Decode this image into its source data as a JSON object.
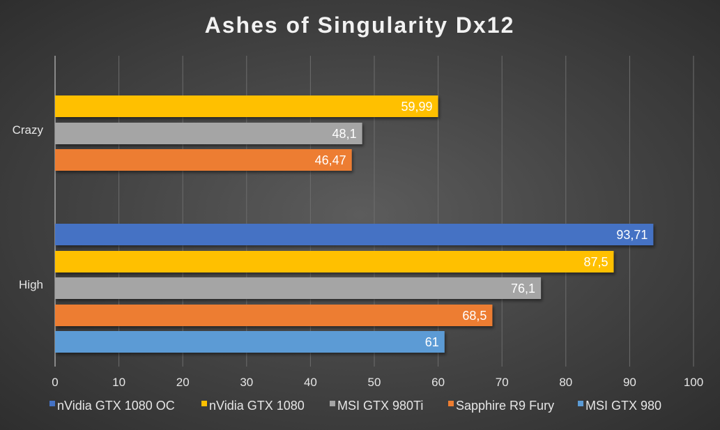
{
  "chart_data": {
    "type": "bar",
    "orientation": "horizontal",
    "title": "Ashes of Singularity Dx12",
    "xlabel": "",
    "ylabel": "",
    "xlim": [
      0,
      100
    ],
    "xticks": [
      0,
      10,
      20,
      30,
      40,
      50,
      60,
      70,
      80,
      90,
      100
    ],
    "grid": true,
    "legend_position": "bottom",
    "categories": [
      "Crazy",
      "High"
    ],
    "series": [
      {
        "name": "nVidia GTX 1080 OC",
        "color": "#4472c4",
        "values": [
          null,
          93.71
        ],
        "labels": [
          "",
          "93,71"
        ]
      },
      {
        "name": "nVidia GTX 1080",
        "color": "#ffc000",
        "values": [
          59.99,
          87.5
        ],
        "labels": [
          "59,99",
          "87,5"
        ]
      },
      {
        "name": "MSI GTX 980Ti",
        "color": "#a5a5a5",
        "values": [
          48.1,
          76.1
        ],
        "labels": [
          "48,1",
          "76,1"
        ]
      },
      {
        "name": "Sapphire R9 Fury",
        "color": "#ed7d31",
        "values": [
          46.47,
          68.5
        ],
        "labels": [
          "46,47",
          "68,5"
        ]
      },
      {
        "name": "MSI GTX 980",
        "color": "#5b9bd5",
        "values": [
          null,
          61
        ],
        "labels": [
          "",
          "61"
        ]
      }
    ]
  }
}
